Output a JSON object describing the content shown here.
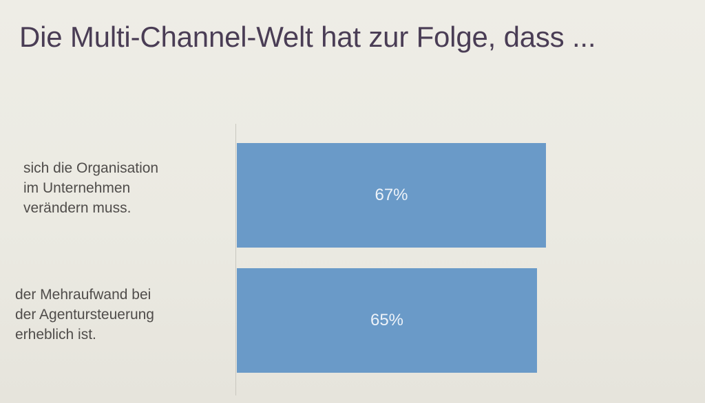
{
  "slide": {
    "title": "Die Multi-Channel-Welt hat zur Folge, dass ..."
  },
  "chart_data": {
    "type": "bar",
    "orientation": "horizontal",
    "title": "Die Multi-Channel-Welt hat zur Folge, dass ...",
    "categories": [
      "sich die Organisation\nim Unternehmen\nverändern muss.",
      "der Mehraufwand bei\nder Agentursteuerung\nerheblich ist."
    ],
    "values": [
      67,
      65
    ],
    "value_labels": [
      "67%",
      "65%"
    ],
    "unit": "%",
    "xlim": [
      0,
      100
    ],
    "grid": false,
    "bar_color": "#6a9ac8",
    "value_label_color": "#eef3f9"
  }
}
